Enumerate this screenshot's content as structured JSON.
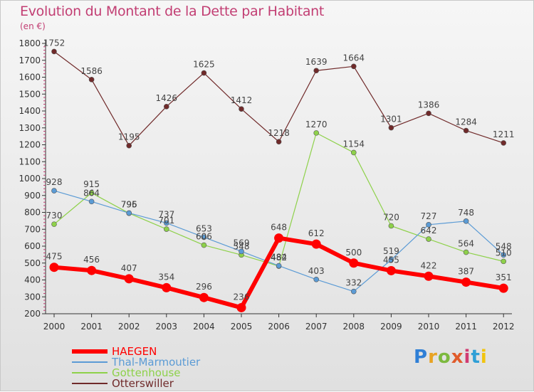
{
  "header": {
    "title": "Evolution du Montant de la Dette par Habitant",
    "subtitle": "(en €)"
  },
  "logo": {
    "text": "ProXiti",
    "letters": [
      "P",
      "r",
      "o",
      "x",
      "i",
      "t",
      "i"
    ],
    "colors": [
      "#2f7fd6",
      "#e8a323",
      "#7cb93e",
      "#e05b2b",
      "#d13b72",
      "#2f9fd6",
      "#f1c40f"
    ]
  },
  "chart_data": {
    "type": "line",
    "title": "Evolution du Montant de la Dette par Habitant",
    "ylabel": "(en €)",
    "xlabel": "",
    "ylim": [
      200,
      1800
    ],
    "yticks": [
      200,
      300,
      400,
      500,
      600,
      700,
      800,
      900,
      1000,
      1100,
      1200,
      1300,
      1400,
      1500,
      1600,
      1700,
      1800
    ],
    "categories": [
      "2000",
      "2001",
      "2002",
      "2003",
      "2004",
      "2005",
      "2006",
      "2007",
      "2008",
      "2009",
      "2010",
      "2011",
      "2012"
    ],
    "grid": false,
    "legend": "bottom-left",
    "series": [
      {
        "name": "Otterswiller",
        "color": "#702a2a",
        "width": 1.2,
        "marker": 3.5,
        "values": [
          1752,
          1586,
          1195,
          1426,
          1625,
          1412,
          1218,
          1639,
          1664,
          1301,
          1386,
          1284,
          1211
        ]
      },
      {
        "name": "Gottenhouse",
        "color": "#8ed14a",
        "width": 1.2,
        "marker": 3.5,
        "values": [
          730,
          915,
          795,
          701,
          606,
          548,
          482,
          1270,
          1154,
          720,
          642,
          564,
          510
        ]
      },
      {
        "name": "Thal-Marmoutier",
        "color": "#5b9bd5",
        "width": 1.2,
        "marker": 3.5,
        "values": [
          928,
          864,
          796,
          737,
          653,
          569,
          484,
          403,
          332,
          519,
          727,
          748,
          548
        ]
      },
      {
        "name": "HAEGEN",
        "color": "#ff0000",
        "width": 6,
        "marker": 6.5,
        "values": [
          475,
          456,
          407,
          354,
          296,
          236,
          648,
          612,
          500,
          455,
          422,
          387,
          351
        ]
      }
    ]
  },
  "legend_items": [
    {
      "name": "HAEGEN",
      "color": "#ff0000",
      "width": 6
    },
    {
      "name": "Thal-Marmoutier",
      "color": "#5b9bd5",
      "width": 2
    },
    {
      "name": "Gottenhouse",
      "color": "#8ed14a",
      "width": 2
    },
    {
      "name": "Otterswiller",
      "color": "#702a2a",
      "width": 2
    }
  ]
}
